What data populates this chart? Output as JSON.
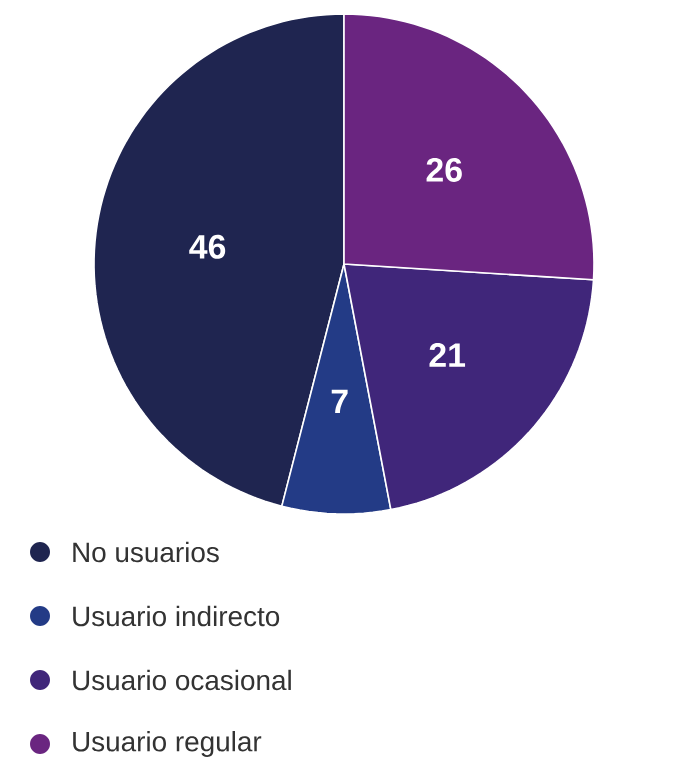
{
  "chart_data": {
    "type": "pie",
    "categories": [
      "No usuarios",
      "Usuario indirecto",
      "Usuario ocasional",
      "Usuario regular"
    ],
    "values": [
      46,
      7,
      21,
      26
    ],
    "colors": [
      "#1f2550",
      "#233b86",
      "#40267a",
      "#6a2580"
    ],
    "data_labels": true,
    "legend": "bottom"
  }
}
